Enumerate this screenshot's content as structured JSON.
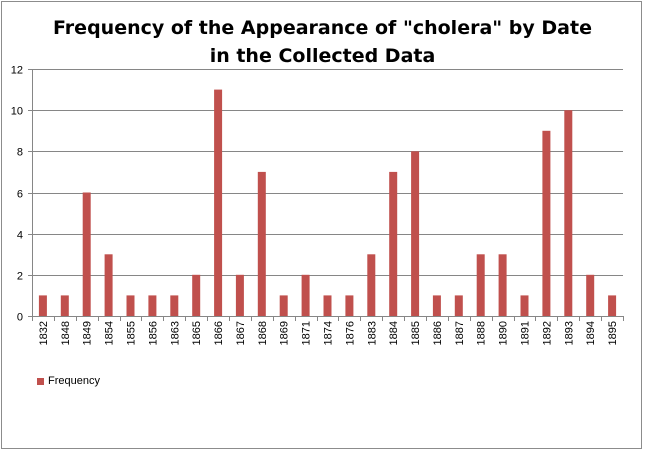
{
  "chart_data": {
    "type": "bar",
    "title_lines": [
      "Frequency of the Appearance of \"cholera\" by Date",
      "in the Collected Data"
    ],
    "categories": [
      "1832",
      "1848",
      "1849",
      "1854",
      "1855",
      "1856",
      "1863",
      "1865",
      "1866",
      "1867",
      "1868",
      "1869",
      "1871",
      "1874",
      "1876",
      "1883",
      "1884",
      "1885",
      "1886",
      "1887",
      "1888",
      "1890",
      "1891",
      "1892",
      "1893",
      "1894",
      "1895"
    ],
    "series": [
      {
        "name": "Frequency",
        "values": [
          1,
          1,
          6,
          3,
          1,
          1,
          1,
          2,
          11,
          2,
          7,
          1,
          2,
          1,
          1,
          3,
          7,
          8,
          1,
          1,
          3,
          3,
          1,
          9,
          10,
          2,
          1
        ]
      }
    ],
    "xlabel": "",
    "ylabel": "",
    "ylim": [
      0,
      12
    ],
    "yticks": [
      0,
      2,
      4,
      6,
      8,
      10,
      12
    ],
    "grid": true,
    "legend_position": "bottom-left",
    "colors": {
      "bar": "#c0504d",
      "grid": "#868686",
      "axis": "#868686"
    }
  }
}
